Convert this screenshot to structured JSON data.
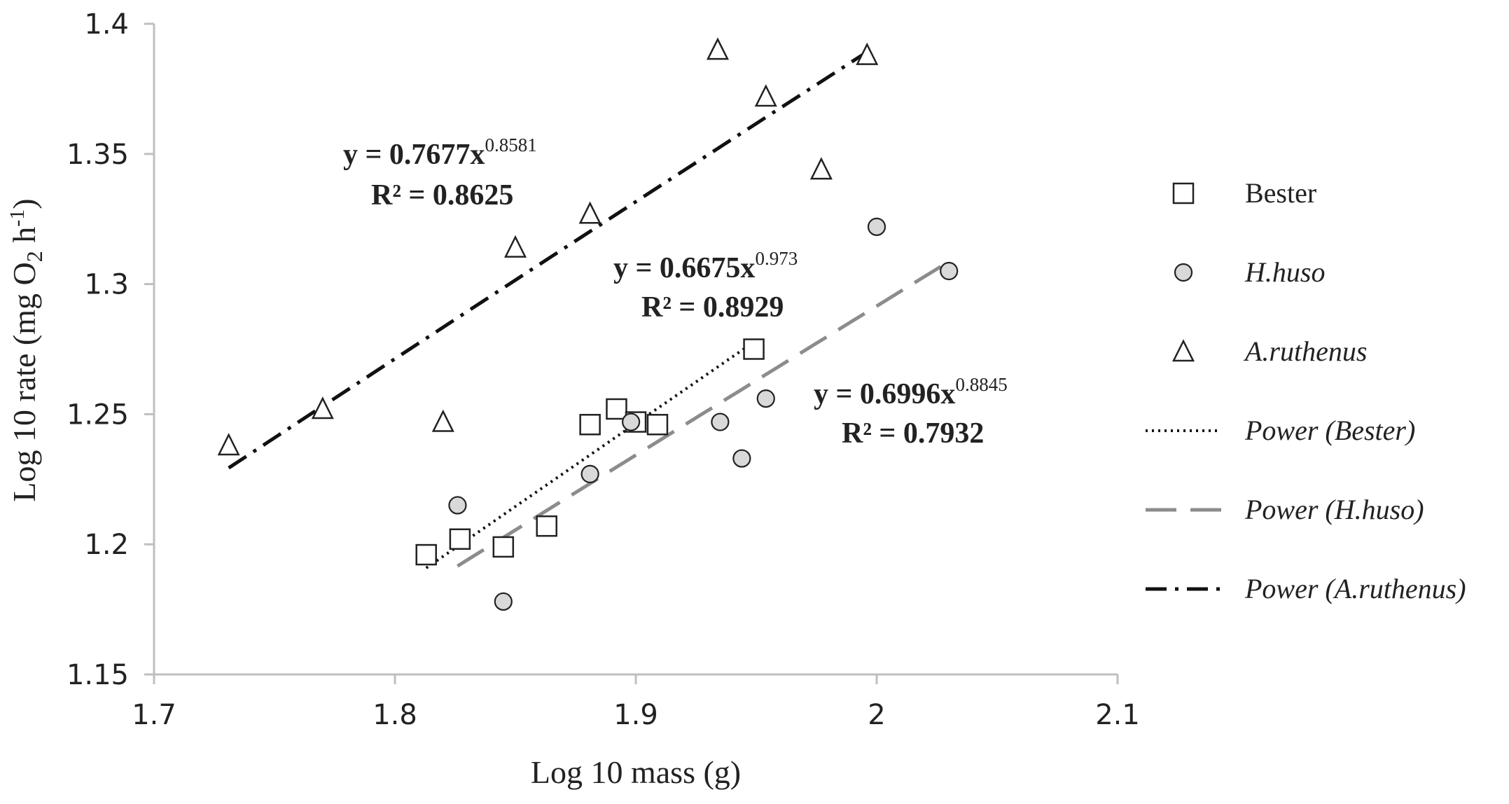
{
  "chart_data": {
    "type": "scatter",
    "title": "",
    "xlabel": "Log 10 mass (g)",
    "ylabel_parts": {
      "prefix": "Log 10  rate (mg O",
      "sub": "2",
      "mid": " h",
      "sup": "-1",
      "suffix": ")"
    },
    "xlim": [
      1.7,
      2.1
    ],
    "ylim": [
      1.15,
      1.4
    ],
    "x_ticks": [
      1.7,
      1.8,
      1.9,
      2.0,
      2.1
    ],
    "x_tick_labels": [
      "1.7",
      "1.8",
      "1.9",
      "2",
      "2.1"
    ],
    "y_ticks": [
      1.15,
      1.2,
      1.25,
      1.3,
      1.35,
      1.4
    ],
    "y_tick_labels": [
      "1.15",
      "1.2",
      "1.25",
      "1.3",
      "1.35",
      "1.4"
    ],
    "grid": false,
    "legend_position": "right",
    "series": [
      {
        "name": "Bester",
        "marker": "square",
        "points": [
          [
            1.813,
            1.196
          ],
          [
            1.827,
            1.202
          ],
          [
            1.845,
            1.199
          ],
          [
            1.863,
            1.207
          ],
          [
            1.881,
            1.246
          ],
          [
            1.892,
            1.252
          ],
          [
            1.9,
            1.247
          ],
          [
            1.909,
            1.246
          ],
          [
            1.949,
            1.275
          ]
        ]
      },
      {
        "name": "H.huso",
        "marker": "circle",
        "points": [
          [
            1.826,
            1.215
          ],
          [
            1.845,
            1.178
          ],
          [
            1.881,
            1.227
          ],
          [
            1.898,
            1.247
          ],
          [
            1.935,
            1.247
          ],
          [
            1.944,
            1.233
          ],
          [
            1.954,
            1.256
          ],
          [
            2.0,
            1.322
          ],
          [
            2.03,
            1.305
          ]
        ]
      },
      {
        "name": "A.ruthenus",
        "marker": "triangle",
        "points": [
          [
            1.731,
            1.238
          ],
          [
            1.77,
            1.252
          ],
          [
            1.82,
            1.247
          ],
          [
            1.85,
            1.314
          ],
          [
            1.881,
            1.327
          ],
          [
            1.934,
            1.39
          ],
          [
            1.954,
            1.372
          ],
          [
            1.977,
            1.344
          ],
          [
            1.996,
            1.388
          ]
        ]
      }
    ],
    "trendlines": [
      {
        "name": "Power (Bester)",
        "style": "dotted",
        "color": "#111111",
        "coefficient": 0.6675,
        "exponent": 0.973,
        "x_range": [
          1.813,
          1.949
        ],
        "equation_prefix": "y = 0.6675x",
        "equation_exponent": "0.973",
        "r2_label": "R² = 0.8929"
      },
      {
        "name": "Power (H.huso)",
        "style": "dashed",
        "color": "#8c8c8c",
        "coefficient": 0.6996,
        "exponent": 0.8845,
        "x_range": [
          1.826,
          2.03
        ],
        "equation_prefix": "y = 0.6996x",
        "equation_exponent": "0.8845",
        "r2_label": "R² = 0.7932"
      },
      {
        "name": "Power (A.ruthenus)",
        "style": "dashdot",
        "color": "#111111",
        "coefficient": 0.7677,
        "exponent": 0.8581,
        "x_range": [
          1.731,
          1.996
        ],
        "equation_prefix": "y = 0.7677x",
        "equation_exponent": "0.8581",
        "r2_label": "R² = 0.8625"
      }
    ],
    "colors": {
      "axis": "#bfbfbf",
      "marker_stroke": "#222222",
      "circle_fill": "#d9d9d9",
      "text": "#222222"
    }
  },
  "legend": {
    "items": [
      {
        "label": "Bester",
        "kind": "square",
        "italic": false
      },
      {
        "label": "H.huso",
        "kind": "circle",
        "italic": true
      },
      {
        "label": "A.ruthenus",
        "kind": "triangle",
        "italic": true
      },
      {
        "label": "Power (Bester)",
        "kind": "dotted",
        "italic": true
      },
      {
        "label": "Power (H.huso)",
        "kind": "dashed",
        "italic": true
      },
      {
        "label": "Power (A.ruthenus)",
        "kind": "dashdot",
        "italic": true
      }
    ]
  }
}
